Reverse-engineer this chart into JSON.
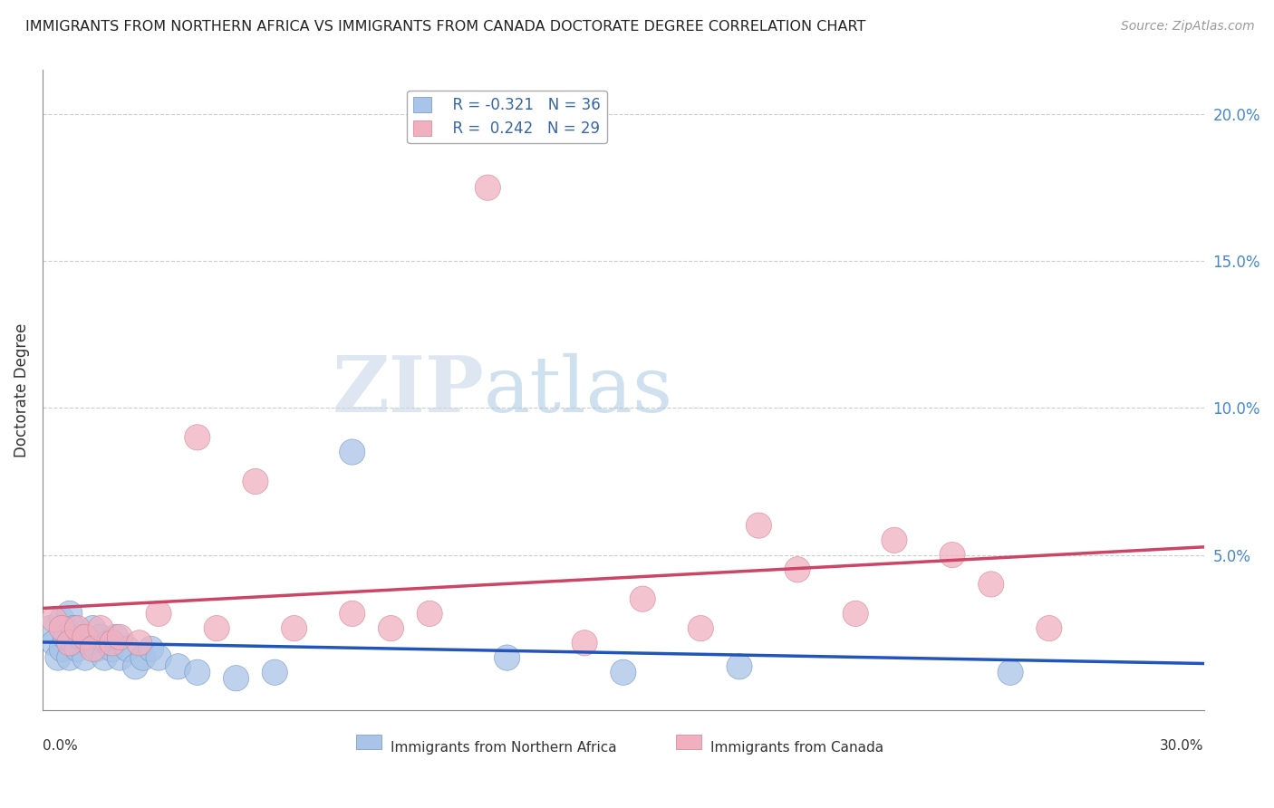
{
  "title": "IMMIGRANTS FROM NORTHERN AFRICA VS IMMIGRANTS FROM CANADA DOCTORATE DEGREE CORRELATION CHART",
  "source": "Source: ZipAtlas.com",
  "ylabel": "Doctorate Degree",
  "ylabel_right_ticks": [
    0.0,
    0.05,
    0.1,
    0.15,
    0.2
  ],
  "ylabel_right_labels": [
    "",
    "5.0%",
    "10.0%",
    "15.0%",
    "20.0%"
  ],
  "xmin": 0.0,
  "xmax": 0.3,
  "ymin": -0.003,
  "ymax": 0.215,
  "legend_blue_r": "R = -0.321",
  "legend_blue_n": "N = 36",
  "legend_pink_r": "R =  0.242",
  "legend_pink_n": "N = 29",
  "blue_color": "#a8c4e8",
  "pink_color": "#f0b0c0",
  "blue_edge_color": "#7090c0",
  "pink_edge_color": "#d08090",
  "blue_line_color": "#2255bb",
  "pink_line_color": "#cc4466",
  "watermark_zip": "ZIP",
  "watermark_atlas": "atlas",
  "blue_scatter_x": [
    0.002,
    0.003,
    0.004,
    0.005,
    0.005,
    0.006,
    0.007,
    0.007,
    0.008,
    0.008,
    0.009,
    0.01,
    0.011,
    0.012,
    0.013,
    0.014,
    0.015,
    0.016,
    0.017,
    0.018,
    0.019,
    0.02,
    0.022,
    0.024,
    0.026,
    0.028,
    0.03,
    0.035,
    0.04,
    0.05,
    0.06,
    0.08,
    0.12,
    0.15,
    0.18,
    0.25
  ],
  "blue_scatter_y": [
    0.025,
    0.02,
    0.015,
    0.028,
    0.018,
    0.022,
    0.03,
    0.015,
    0.025,
    0.02,
    0.018,
    0.022,
    0.015,
    0.02,
    0.025,
    0.018,
    0.022,
    0.015,
    0.02,
    0.018,
    0.022,
    0.015,
    0.018,
    0.012,
    0.015,
    0.018,
    0.015,
    0.012,
    0.01,
    0.008,
    0.01,
    0.085,
    0.015,
    0.01,
    0.012,
    0.01
  ],
  "pink_scatter_x": [
    0.003,
    0.005,
    0.007,
    0.009,
    0.011,
    0.013,
    0.015,
    0.018,
    0.02,
    0.025,
    0.03,
    0.04,
    0.045,
    0.055,
    0.065,
    0.08,
    0.09,
    0.1,
    0.115,
    0.14,
    0.155,
    0.17,
    0.185,
    0.195,
    0.21,
    0.22,
    0.235,
    0.245,
    0.26
  ],
  "pink_scatter_y": [
    0.028,
    0.025,
    0.02,
    0.025,
    0.022,
    0.018,
    0.025,
    0.02,
    0.022,
    0.02,
    0.03,
    0.09,
    0.025,
    0.075,
    0.025,
    0.03,
    0.025,
    0.03,
    0.175,
    0.02,
    0.035,
    0.025,
    0.06,
    0.045,
    0.03,
    0.055,
    0.05,
    0.04,
    0.025
  ]
}
